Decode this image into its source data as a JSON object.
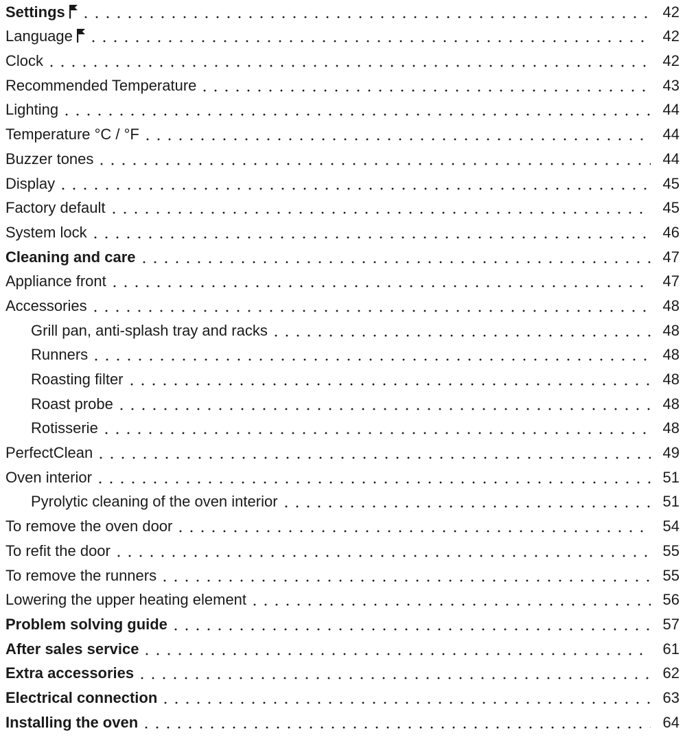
{
  "toc": {
    "entries": [
      {
        "title": "Settings",
        "page": "42",
        "level": 1,
        "flag": true
      },
      {
        "title": "Language",
        "page": "42",
        "level": 2,
        "flag": true
      },
      {
        "title": "Clock",
        "page": "42",
        "level": 2,
        "flag": false
      },
      {
        "title": "Recommended Temperature",
        "page": "43",
        "level": 2,
        "flag": false
      },
      {
        "title": "Lighting",
        "page": "44",
        "level": 2,
        "flag": false
      },
      {
        "title": "Temperature °C / °F",
        "page": "44",
        "level": 2,
        "flag": false
      },
      {
        "title": "Buzzer tones",
        "page": "44",
        "level": 2,
        "flag": false
      },
      {
        "title": "Display",
        "page": "45",
        "level": 2,
        "flag": false
      },
      {
        "title": "Factory default",
        "page": "45",
        "level": 2,
        "flag": false
      },
      {
        "title": "System lock",
        "page": "46",
        "level": 2,
        "flag": false
      },
      {
        "title": "Cleaning and care",
        "page": "47",
        "level": 1,
        "flag": false
      },
      {
        "title": "Appliance front",
        "page": "47",
        "level": 2,
        "flag": false
      },
      {
        "title": "Accessories",
        "page": "48",
        "level": 2,
        "flag": false
      },
      {
        "title": "Grill pan, anti-splash tray and racks",
        "page": "48",
        "level": 3,
        "flag": false
      },
      {
        "title": "Runners",
        "page": "48",
        "level": 3,
        "flag": false
      },
      {
        "title": "Roasting filter",
        "page": "48",
        "level": 3,
        "flag": false
      },
      {
        "title": "Roast probe",
        "page": "48",
        "level": 3,
        "flag": false
      },
      {
        "title": "Rotisserie",
        "page": "48",
        "level": 3,
        "flag": false
      },
      {
        "title": "PerfectClean",
        "page": "49",
        "level": 2,
        "flag": false
      },
      {
        "title": "Oven interior",
        "page": "51",
        "level": 2,
        "flag": false
      },
      {
        "title": "Pyrolytic cleaning of the oven interior",
        "page": "51",
        "level": 3,
        "flag": false
      },
      {
        "title": "To remove the oven door",
        "page": "54",
        "level": 2,
        "flag": false
      },
      {
        "title": "To refit the door",
        "page": "55",
        "level": 2,
        "flag": false
      },
      {
        "title": "To remove the runners",
        "page": "55",
        "level": 2,
        "flag": false
      },
      {
        "title": "Lowering the upper heating element",
        "page": "56",
        "level": 2,
        "flag": false
      },
      {
        "title": "Problem solving guide",
        "page": "57",
        "level": 1,
        "flag": false
      },
      {
        "title": "After sales service",
        "page": "61",
        "level": 1,
        "flag": false
      },
      {
        "title": "Extra accessories",
        "page": "62",
        "level": 1,
        "flag": false
      },
      {
        "title": "Electrical connection",
        "page": "63",
        "level": 1,
        "flag": false
      },
      {
        "title": "Installing the oven",
        "page": "64",
        "level": 1,
        "flag": false
      }
    ]
  }
}
